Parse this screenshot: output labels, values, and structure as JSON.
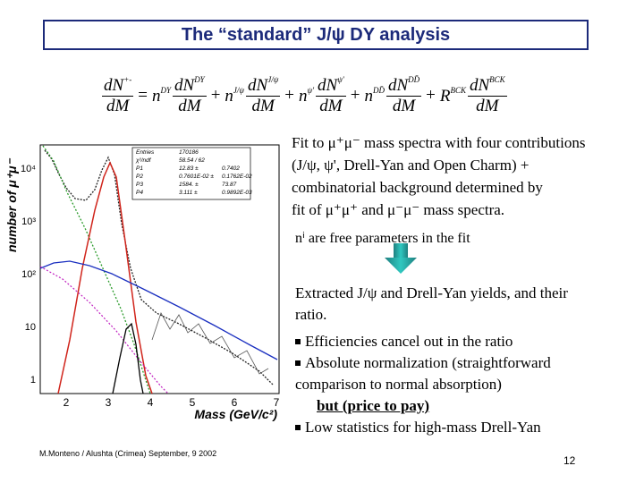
{
  "title": "The “standard”  J/ψ DY analysis",
  "formula": {
    "lhs": {
      "num": "dN",
      "num_sup": "+-",
      "den": "dM"
    },
    "terms": [
      {
        "op": "=",
        "coef": "n",
        "coef_sup": "DY",
        "num": "dN",
        "num_sup": "DY",
        "den": "dM"
      },
      {
        "op": "+",
        "coef": "n",
        "coef_sup": "J/ψ",
        "num": "dN",
        "num_sup": "J/ψ",
        "den": "dM"
      },
      {
        "op": "+",
        "coef": "n",
        "coef_sup": "ψ'",
        "num": "dN",
        "num_sup": "ψ'",
        "den": "dM"
      },
      {
        "op": "+",
        "coef": "n",
        "coef_sup": "DD̄",
        "num": "dN",
        "num_sup": "DD̄",
        "den": "dM"
      },
      {
        "op": "+",
        "coef": "R",
        "coef_sup": "BCK",
        "num": "dN",
        "num_sup": "BCK",
        "den": "dM"
      }
    ]
  },
  "plot": {
    "y_label": "number of μ⁺μ⁻",
    "x_label": "Mass (GeV/c²)",
    "y_ticks": [
      "10⁴",
      "10³",
      "10²",
      "10",
      "1"
    ],
    "x_ticks": [
      "2",
      "3",
      "4",
      "5",
      "6",
      "7"
    ],
    "stats": [
      [
        "Entries",
        "170186"
      ],
      [
        "χ²/ndf",
        "58.54  /  62"
      ],
      [
        "P1",
        "12.83 ±",
        "0.7402"
      ],
      [
        "P2",
        "0.7601E-02 ±",
        "0.1762E-02"
      ],
      [
        "P3",
        "1584. ±",
        "73.87"
      ],
      [
        "P4",
        "3.111 ±",
        "0.9892E-03"
      ]
    ]
  },
  "fit_text": [
    "Fit to μ⁺μ⁻ mass spectra with four contributions",
    "(J/ψ, ψ', Drell-Yan and Open Charm) +",
    "combinatorial background determined by",
    "fit of μ⁺μ⁺ and μ⁻μ⁻ mass spectra."
  ],
  "note": "nⁱ are free parameters in the fit",
  "result": [
    "Extracted J/ψ and Drell-Yan yields, and their",
    "ratio."
  ],
  "bullets": [
    {
      "text": "Efficiencies cancel out in the ratio",
      "bullet": true
    },
    {
      "text": "Absolute normalization (straightforward",
      "bullet": true
    },
    {
      "text": "comparison to normal absorption)",
      "bullet": false
    },
    {
      "text": "but (price to pay)",
      "bullet": false,
      "emph": true
    },
    {
      "text": "Low statistics for high-mass Drell-Yan",
      "bullet": true
    }
  ],
  "footer": "M.Monteno / Alushta (Crimea) September, 9  2002",
  "page": "12"
}
